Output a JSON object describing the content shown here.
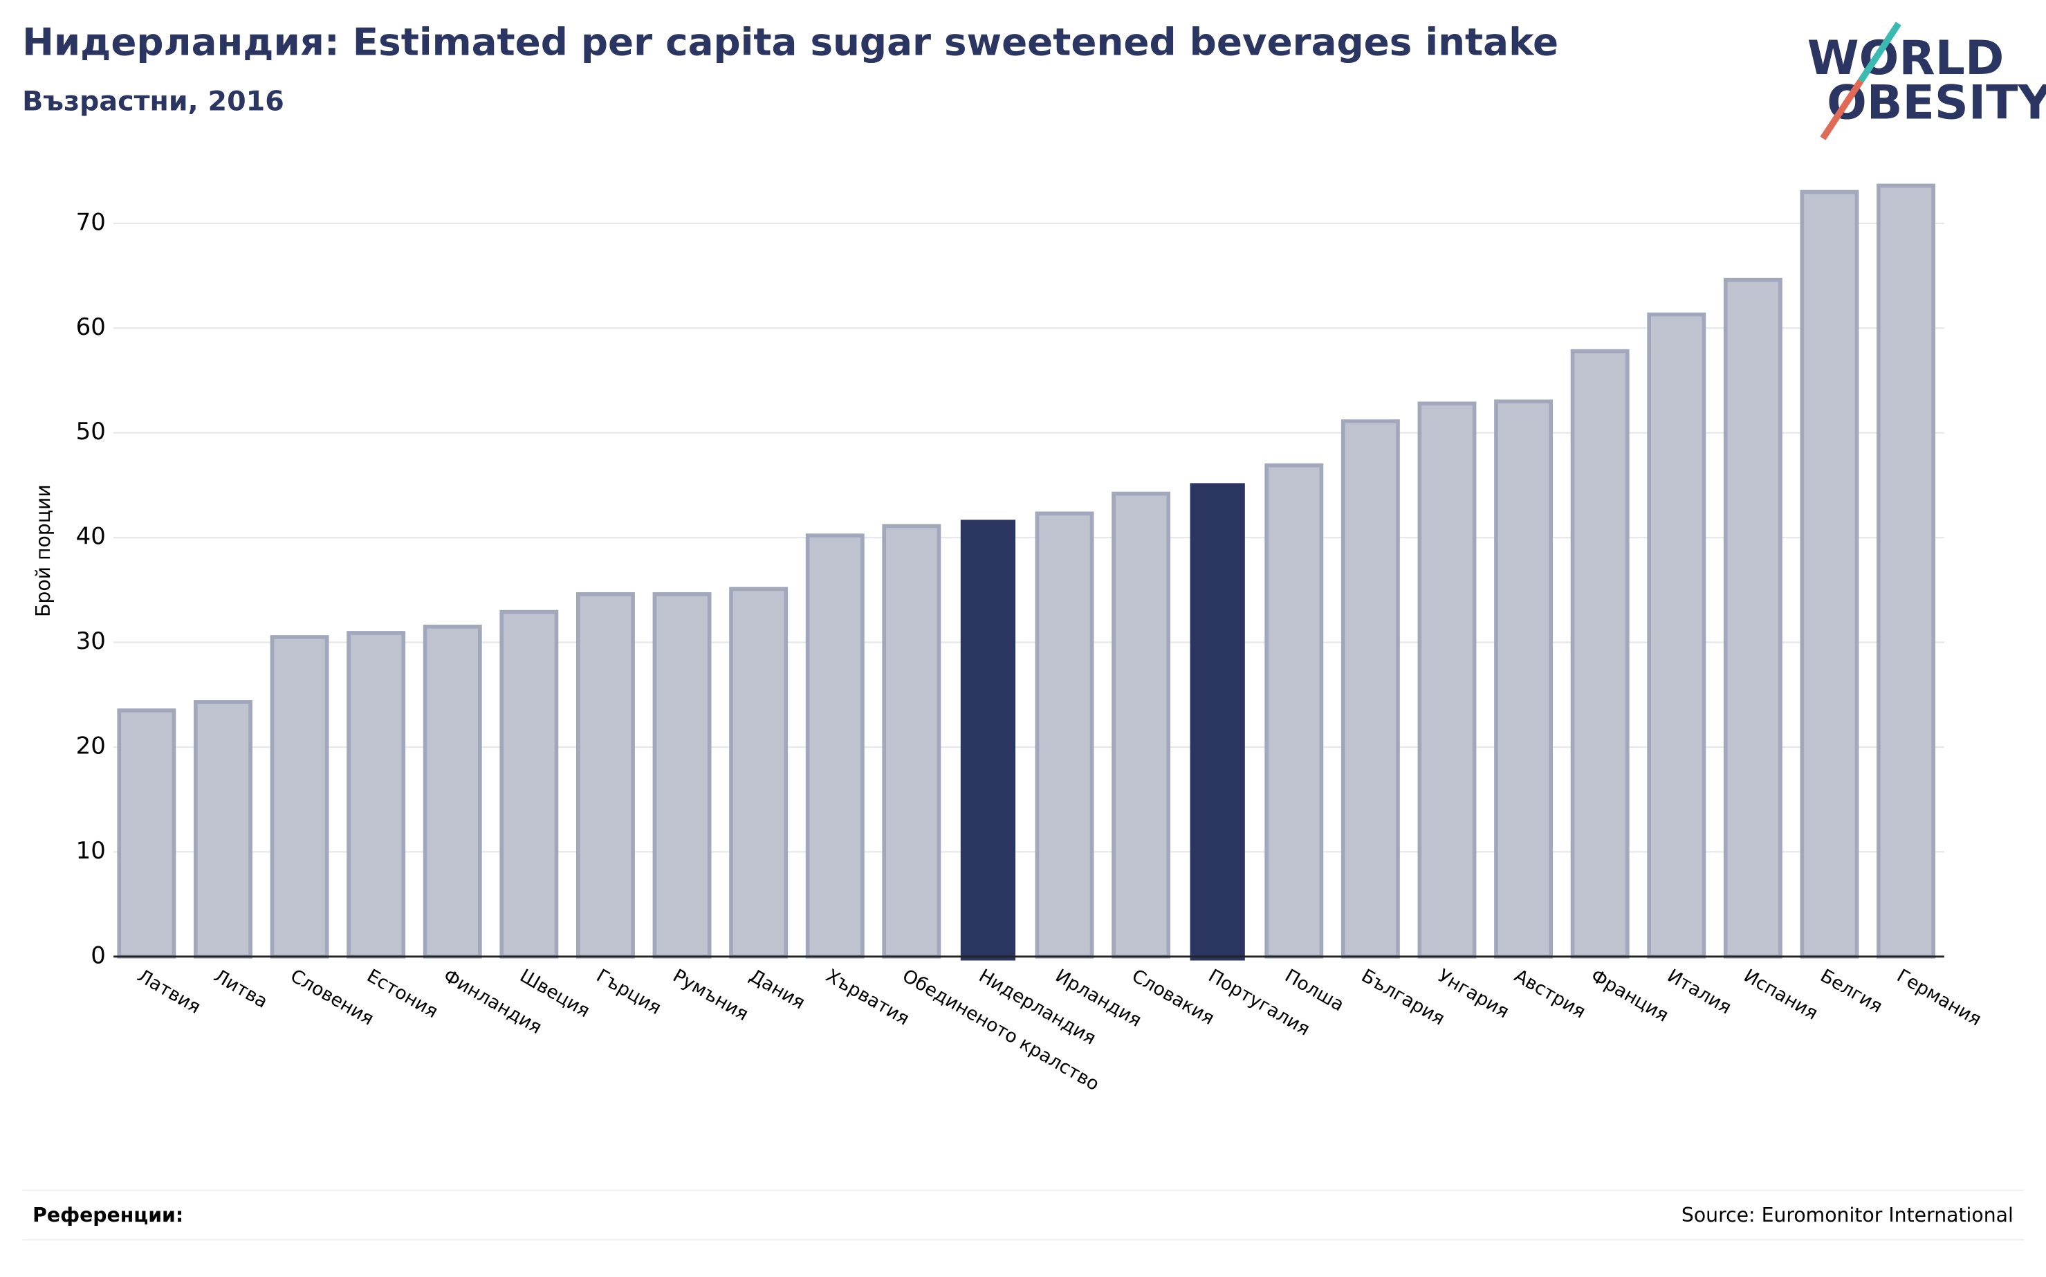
{
  "chart_data": {
    "type": "bar",
    "title": "Нидерландия: Estimated per capita sugar sweetened beverages intake",
    "subtitle": "Възрастни, 2016",
    "y_label": "Брой порции",
    "categories": [
      "Латвия",
      "Литва",
      "Словения",
      "Естония",
      "Финландия",
      "Швеция",
      "Гърция",
      "Румъния",
      "Дания",
      "Хърватия",
      "Обединеното кралство",
      "Нидерландия",
      "Ирландия",
      "Словакия",
      "Португалия",
      "Полша",
      "България",
      "Унгария",
      "Австрия",
      "Франция",
      "Италия",
      "Испания",
      "Белгия",
      "Германия"
    ],
    "values": [
      23.5,
      24.3,
      30.5,
      30.9,
      31.5,
      32.9,
      34.6,
      34.6,
      35.1,
      40.2,
      41.1,
      41.7,
      42.3,
      44.2,
      45.2,
      46.9,
      51.1,
      52.8,
      53.0,
      57.8,
      61.3,
      64.6,
      73.0,
      73.6
    ],
    "colors": [
      "#bfc2cf",
      "#bfc2cf",
      "#bfc2cf",
      "#bfc2cf",
      "#bfc2cf",
      "#bfc2cf",
      "#bfc2cf",
      "#bfc2cf",
      "#bfc2cf",
      "#bfc2cf",
      "#bfc2cf",
      "#2a3561",
      "#bfc2cf",
      "#bfc2cf",
      "#2a3561",
      "#bfc2cf",
      "#bfc2cf",
      "#bfc2cf",
      "#bfc2cf",
      "#bfc2cf",
      "#bfc2cf",
      "#bfc2cf",
      "#bfc2cf",
      "#bfc2cf"
    ],
    "ylim": [
      0,
      75
    ],
    "yticks": [
      0,
      10,
      20,
      30,
      40,
      50,
      60,
      70
    ],
    "grid": true,
    "logo": [
      "WORLD",
      "OBESITY"
    ],
    "footer_left": "Референции:",
    "source": "Source: Euromonitor International"
  }
}
